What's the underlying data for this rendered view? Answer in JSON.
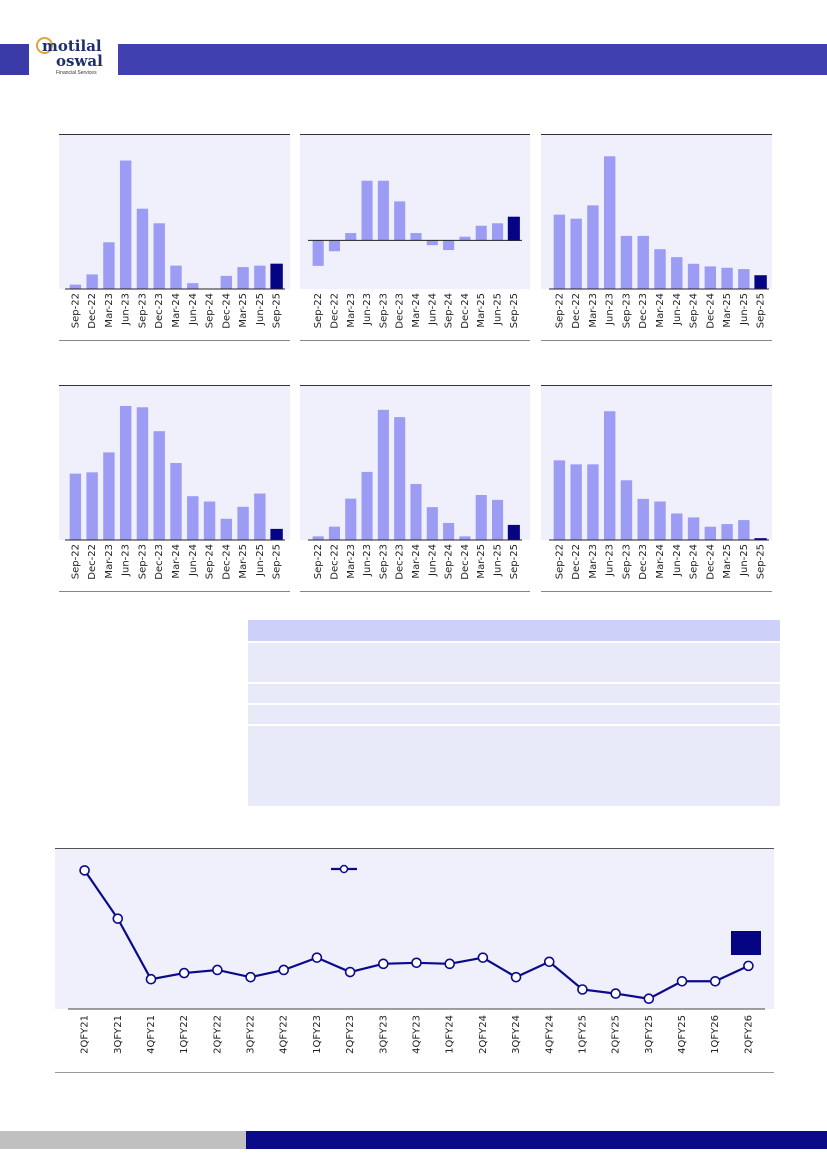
{
  "header": {
    "logo_line1": "motilal",
    "logo_line2": "oswal",
    "logo_sub": "Financial Services"
  },
  "colors": {
    "bar": "#9c9cf4",
    "highlight": "#050584",
    "line": "#0b0b8a",
    "panel_bg": "#f0f0fc",
    "header": "#4040b0"
  },
  "chart_data": [
    {
      "type": "bar",
      "categories": [
        "Sep-22",
        "Dec-22",
        "Mar-23",
        "Jun-23",
        "Sep-23",
        "Dec-23",
        "Mar-24",
        "Jun-24",
        "Sep-24",
        "Dec-24",
        "Mar-25",
        "Jun-25",
        "Sep-25"
      ],
      "values": [
        3,
        10,
        32,
        88,
        55,
        45,
        16,
        4,
        0,
        9,
        15,
        16,
        17
      ],
      "ylim": [
        0,
        100
      ],
      "highlight_last": true
    },
    {
      "type": "bar",
      "categories": [
        "Sep-22",
        "Dec-22",
        "Mar-23",
        "Jun-23",
        "Sep-23",
        "Dec-23",
        "Mar-24",
        "Jun-24",
        "Sep-24",
        "Dec-24",
        "Mar-25",
        "Jun-25",
        "Sep-25"
      ],
      "values": [
        -21,
        -9,
        6,
        49,
        49,
        32,
        6,
        -4,
        -8,
        3,
        12,
        14,
        19
      ],
      "ylim": [
        -40,
        80
      ],
      "highlight_last": true
    },
    {
      "type": "bar",
      "categories": [
        "Sep-22",
        "Dec-22",
        "Mar-23",
        "Jun-23",
        "Sep-23",
        "Dec-23",
        "Mar-24",
        "Jun-24",
        "Sep-24",
        "Dec-24",
        "Mar-25",
        "Jun-25",
        "Sep-25"
      ],
      "values": [
        56,
        53,
        63,
        100,
        40,
        40,
        30,
        24,
        19,
        17,
        16,
        15,
        10
      ],
      "ylim": [
        0,
        110
      ],
      "highlight_last": true
    },
    {
      "type": "bar",
      "categories": [
        "Sep-22",
        "Dec-22",
        "Mar-23",
        "Jun-23",
        "Sep-23",
        "Dec-23",
        "Mar-24",
        "Jun-24",
        "Sep-24",
        "Dec-24",
        "Mar-25",
        "Jun-25",
        "Sep-25"
      ],
      "values": [
        50,
        51,
        66,
        101,
        100,
        82,
        58,
        33,
        29,
        16,
        25,
        35,
        8
      ],
      "ylim": [
        0,
        110
      ],
      "highlight_last": true
    },
    {
      "type": "bar",
      "categories": [
        "Sep-22",
        "Dec-22",
        "Mar-23",
        "Jun-23",
        "Sep-23",
        "Dec-23",
        "Mar-24",
        "Jun-24",
        "Sep-24",
        "Dec-24",
        "Mar-25",
        "Jun-25",
        "Sep-25"
      ],
      "values": [
        3,
        11,
        34,
        56,
        107,
        101,
        46,
        27,
        14,
        3,
        37,
        33,
        12
      ],
      "ylim": [
        0,
        120
      ],
      "highlight_last": true
    },
    {
      "type": "bar",
      "categories": [
        "Sep-22",
        "Dec-22",
        "Mar-23",
        "Jun-23",
        "Sep-23",
        "Dec-23",
        "Mar-24",
        "Jun-24",
        "Sep-24",
        "Dec-24",
        "Mar-25",
        "Jun-25",
        "Sep-25"
      ],
      "values": [
        60,
        57,
        57,
        97,
        45,
        31,
        29,
        20,
        17,
        10,
        12,
        15,
        1
      ],
      "ylim": [
        0,
        110
      ],
      "highlight_last": true
    },
    {
      "type": "line",
      "categories": [
        "2QFY21",
        "3QFY21",
        "4QFY21",
        "1QFY22",
        "2QFY22",
        "3QFY22",
        "4QFY22",
        "1QFY23",
        "2QFY23",
        "3QFY23",
        "4QFY23",
        "1QFY24",
        "2QFY24",
        "3QFY24",
        "4QFY24",
        "1QFY25",
        "2QFY25",
        "3QFY25",
        "4QFY25",
        "1QFY26",
        "2QFY26"
      ],
      "values": [
        135,
        88,
        29,
        35,
        38,
        31,
        38,
        50,
        36,
        44,
        45,
        44,
        50,
        31,
        46,
        19,
        15,
        10,
        27,
        27,
        42
      ],
      "ylim": [
        0,
        150
      ]
    }
  ]
}
